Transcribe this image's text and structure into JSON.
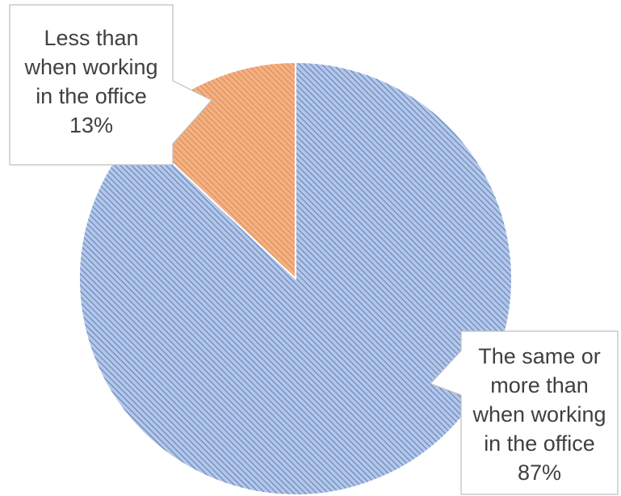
{
  "chart_data": {
    "type": "pie",
    "title": "",
    "start_angle_deg": 0,
    "direction": "counterclockwise",
    "slices": [
      {
        "name": "Less than when working in the office",
        "label_lines": [
          "Less than",
          "when working",
          "in the office",
          "13%"
        ],
        "value": 13,
        "percent_label": "13%",
        "color": "#F4B183",
        "edge_color": "#ED7D31",
        "hatch_color": "#D98A52",
        "hatch": "diagonal"
      },
      {
        "name": "The same or more than when working in the office",
        "label_lines": [
          "The same or",
          "more than",
          "when working",
          "in the office",
          "87%"
        ],
        "value": 87,
        "percent_label": "87%",
        "color": "#B4C7E7",
        "edge_color": "#4472C4",
        "hatch_color": "#5B7DBE",
        "hatch": "diagonal"
      }
    ],
    "legend": "none",
    "label_style": "callout"
  }
}
